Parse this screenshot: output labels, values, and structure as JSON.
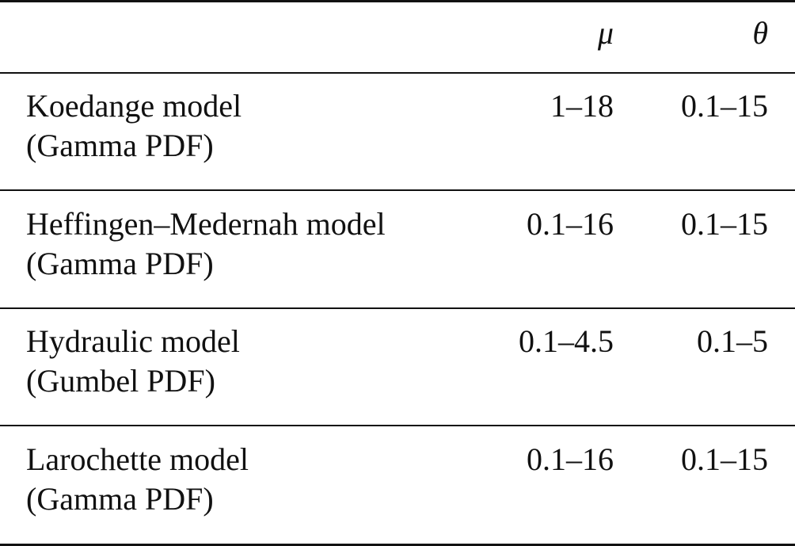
{
  "table": {
    "header": [
      "μ",
      "θ"
    ],
    "rows": [
      [
        "Koedange model",
        "(Gamma PDF)",
        "1–18",
        "0.1–15"
      ],
      [
        "Heffingen–Medernah model",
        "(Gamma PDF)",
        "0.1–16",
        "0.1–15"
      ],
      [
        "Hydraulic model",
        "(Gumbel PDF)",
        "0.1–4.5",
        "0.1–5"
      ],
      [
        "Larochette model",
        "(Gamma PDF)",
        "0.1–16",
        "0.1–15"
      ]
    ]
  }
}
